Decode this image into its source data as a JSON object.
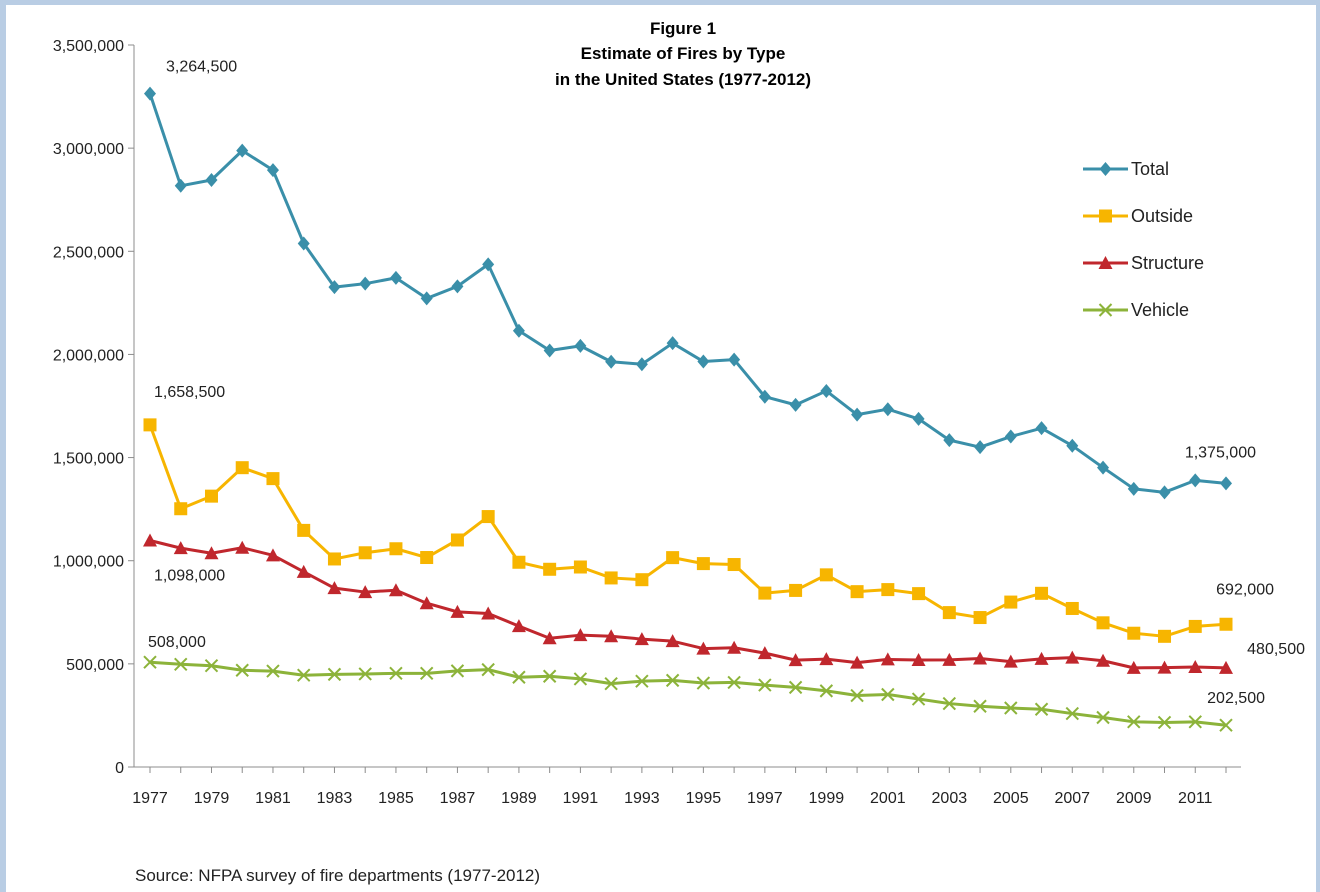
{
  "chart_data": {
    "type": "line",
    "title_lines": [
      "Figure 1",
      "Estimate of Fires by Type",
      "in the United States (1977-2012)"
    ],
    "xlabel": "",
    "ylabel": "",
    "ylim": [
      0,
      3500000
    ],
    "yticks": [
      0,
      500000,
      1000000,
      1500000,
      2000000,
      2500000,
      3000000,
      3500000
    ],
    "ytick_labels": [
      "0",
      "500,000",
      "1,000,000",
      "1,500,000",
      "2,000,000",
      "2,500,000",
      "3,000,000",
      "3,500,000"
    ],
    "xlim": [
      1977,
      2012
    ],
    "x": [
      1977,
      1978,
      1979,
      1980,
      1981,
      1982,
      1983,
      1984,
      1985,
      1986,
      1987,
      1988,
      1989,
      1990,
      1991,
      1992,
      1993,
      1994,
      1995,
      1996,
      1997,
      1998,
      1999,
      2000,
      2001,
      2002,
      2003,
      2004,
      2005,
      2006,
      2007,
      2008,
      2009,
      2010,
      2011,
      2012
    ],
    "xticks": [
      1977,
      1979,
      1981,
      1983,
      1985,
      1987,
      1989,
      1991,
      1993,
      1995,
      1997,
      1999,
      2001,
      2003,
      2005,
      2007,
      2009,
      2011
    ],
    "xtick_labels": [
      "1977",
      "1979",
      "1981",
      "1983",
      "1985",
      "1987",
      "1989",
      "1991",
      "1993",
      "1995",
      "1997",
      "1999",
      "2001",
      "2003",
      "2005",
      "2007",
      "2009",
      "2011"
    ],
    "grid": false,
    "legend_position": "top-right",
    "series": [
      {
        "name": "Total",
        "color": "#3a8fa9",
        "marker": "diamond",
        "values": [
          3264500,
          2817500,
          2845500,
          2988000,
          2893500,
          2538000,
          2326500,
          2343000,
          2371000,
          2271500,
          2330000,
          2436500,
          2115000,
          2019000,
          2041500,
          1964500,
          1952500,
          2054500,
          1965500,
          1975000,
          1795000,
          1755500,
          1823000,
          1708000,
          1734500,
          1687500,
          1584500,
          1550500,
          1602000,
          1642500,
          1557500,
          1451500,
          1348500,
          1331500,
          1389500,
          1375000
        ]
      },
      {
        "name": "Outside",
        "color": "#f7b500",
        "marker": "square",
        "values": [
          1658500,
          1252000,
          1313000,
          1451000,
          1398000,
          1147000,
          1008500,
          1038500,
          1058000,
          1015500,
          1100500,
          1214000,
          992500,
          958500,
          969500,
          916500,
          908000,
          1015000,
          986000,
          981500,
          843000,
          856000,
          931500,
          850000,
          860000,
          840500,
          748500,
          724500,
          799500,
          842000,
          768500,
          699000,
          648500,
          633500,
          681500,
          692000
        ]
      },
      {
        "name": "Structure",
        "color": "#c0272d",
        "marker": "triangle",
        "values": [
          1098000,
          1061000,
          1036000,
          1063000,
          1026000,
          946000,
          867000,
          848000,
          857000,
          794000,
          752000,
          744000,
          683000,
          624000,
          639000,
          634000,
          620000,
          610000,
          574000,
          578000,
          552000,
          518000,
          523000,
          506000,
          521500,
          519000,
          519500,
          526000,
          511000,
          524000,
          530500,
          515000,
          480500,
          482000,
          484500,
          480500
        ]
      },
      {
        "name": "Vehicle",
        "color": "#8cb33a",
        "marker": "x",
        "values": [
          508000,
          498000,
          491000,
          469000,
          465000,
          445000,
          449000,
          451000,
          454000,
          454000,
          466000,
          472000,
          435000,
          440000,
          427000,
          404000,
          416000,
          420000,
          407000,
          410000,
          397000,
          386000,
          369000,
          346500,
          351500,
          329500,
          307500,
          294500,
          286000,
          280000,
          259000,
          240000,
          219000,
          216000,
          219000,
          202500
        ]
      }
    ],
    "annotations": [
      {
        "text": "3,264,500",
        "series": "Total",
        "x": 1977
      },
      {
        "text": "1,658,500",
        "series": "Outside",
        "x": 1977
      },
      {
        "text": "1,098,000",
        "series": "Structure",
        "x": 1977
      },
      {
        "text": "508,000",
        "series": "Vehicle",
        "x": 1977
      },
      {
        "text": "1,375,000",
        "series": "Total",
        "x": 2012
      },
      {
        "text": "692,000",
        "series": "Outside",
        "x": 2012
      },
      {
        "text": "480,500",
        "series": "Structure",
        "x": 2012
      },
      {
        "text": "202,500",
        "series": "Vehicle",
        "x": 2012
      }
    ],
    "source": "Source: NFPA survey of fire departments (1977-2012)"
  }
}
